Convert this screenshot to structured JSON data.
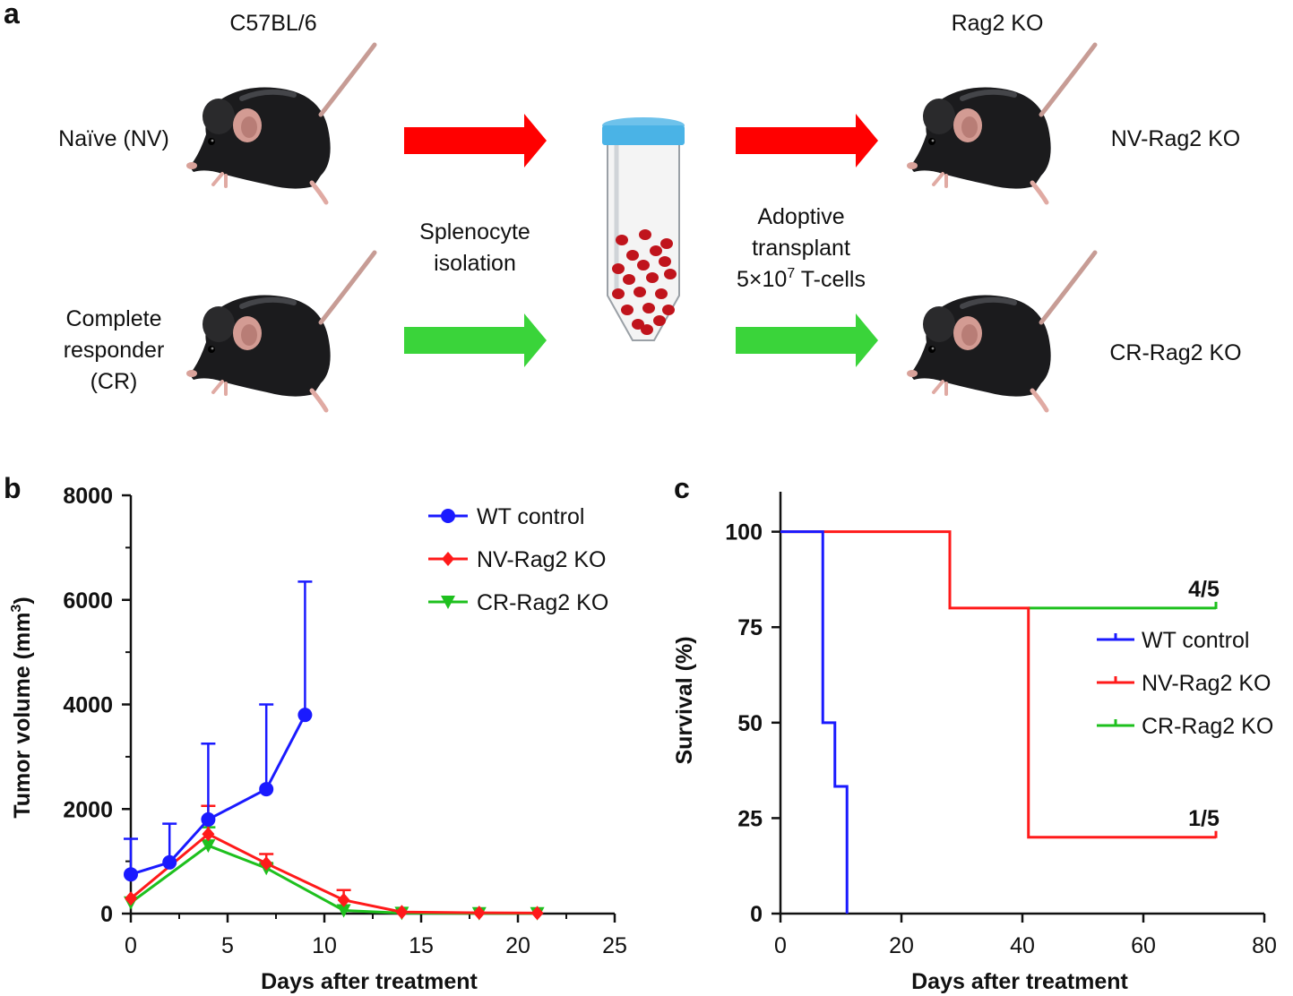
{
  "panel_a": {
    "label": "a",
    "donor_strain": "C57BL/6",
    "recipient_strain": "Rag2 KO",
    "donor_groups": [
      {
        "lines": [
          "Naïve (NV)"
        ],
        "arrow_color": "#ff0000"
      },
      {
        "lines": [
          "Complete",
          "responder",
          "(CR)"
        ],
        "arrow_color": "#3ad43a"
      }
    ],
    "recipient_groups": [
      "NV-Rag2 KO",
      "CR-Rag2 KO"
    ],
    "step1_lines": [
      "Splenocyte",
      "isolation"
    ],
    "step2_lines": [
      "Adoptive",
      "transplant"
    ],
    "step2_dose": {
      "prefix": "5×10",
      "exponent": "7",
      "suffix": " T-cells"
    },
    "cell_color": "#c0141c",
    "tube_cap_color": "#4ab3e6"
  },
  "chart_data": [
    {
      "panel_label": "b",
      "type": "line",
      "title": "",
      "xlabel": "Days after treatment",
      "ylabel": {
        "prefix": "Tumor volume (mm",
        "exponent": "3",
        "suffix": ")"
      },
      "xlim": [
        0,
        25
      ],
      "ylim": [
        0,
        8000
      ],
      "xticks": [
        0,
        5,
        10,
        15,
        20,
        25
      ],
      "xtick_labels": [
        "0",
        "5",
        "10",
        "15",
        "20",
        "25"
      ],
      "yticks": [
        0,
        2000,
        4000,
        6000,
        8000
      ],
      "ytick_labels": [
        "0",
        "2000",
        "4000",
        "6000",
        "8000"
      ],
      "grid": false,
      "legend_position": "top-right",
      "series": [
        {
          "name": "WT control",
          "color": "#1a1aff",
          "marker": "circle",
          "x": [
            0,
            2,
            4,
            7,
            9
          ],
          "y": [
            750,
            980,
            1800,
            2380,
            3800
          ],
          "err_upper": [
            1430,
            1720,
            3250,
            4000,
            6350
          ]
        },
        {
          "name": "NV-Rag2 KO",
          "color": "#ff1a1a",
          "marker": "diamond",
          "x": [
            0,
            4,
            7,
            11,
            14,
            18,
            21
          ],
          "y": [
            290,
            1520,
            960,
            260,
            30,
            15,
            10
          ],
          "err_upper": [
            300,
            2060,
            1140,
            450,
            40,
            20,
            15
          ]
        },
        {
          "name": "CR-Rag2 KO",
          "color": "#1ec01e",
          "marker": "triangle-down",
          "x": [
            0,
            4,
            7,
            11,
            14,
            18,
            21
          ],
          "y": [
            210,
            1300,
            870,
            60,
            10,
            5,
            5
          ],
          "err_upper": [
            220,
            1650,
            950,
            80,
            15,
            8,
            8
          ]
        }
      ]
    },
    {
      "panel_label": "c",
      "type": "line",
      "title": "",
      "xlabel": "Days after treatment",
      "ylabel": "Survival (%)",
      "xlim": [
        0,
        80
      ],
      "ylim": [
        0,
        110
      ],
      "xticks": [
        0,
        20,
        40,
        60,
        80
      ],
      "xtick_labels": [
        "0",
        "20",
        "40",
        "60",
        "80"
      ],
      "yticks": [
        0,
        25,
        50,
        75,
        100
      ],
      "ytick_labels": [
        "0",
        "25",
        "50",
        "75",
        "100"
      ],
      "grid": false,
      "legend_position": "middle-right",
      "series": [
        {
          "name": "WT control",
          "color": "#1a1aff",
          "steps": [
            [
              0,
              100
            ],
            [
              7,
              50
            ],
            [
              9,
              33.3
            ],
            [
              11,
              0
            ]
          ],
          "end_x": 11
        },
        {
          "name": "NV-Rag2 KO",
          "color": "#ff1a1a",
          "steps": [
            [
              0,
              100
            ],
            [
              28,
              80
            ],
            [
              41,
              20
            ]
          ],
          "end_x": 72
        },
        {
          "name": "CR-Rag2 KO",
          "color": "#1ec01e",
          "steps": [
            [
              41,
              80
            ]
          ],
          "end_x": 72
        }
      ],
      "annotations": [
        {
          "text": "4/5",
          "x": 70,
          "y": 83
        },
        {
          "text": "1/5",
          "x": 70,
          "y": 23
        }
      ]
    }
  ]
}
